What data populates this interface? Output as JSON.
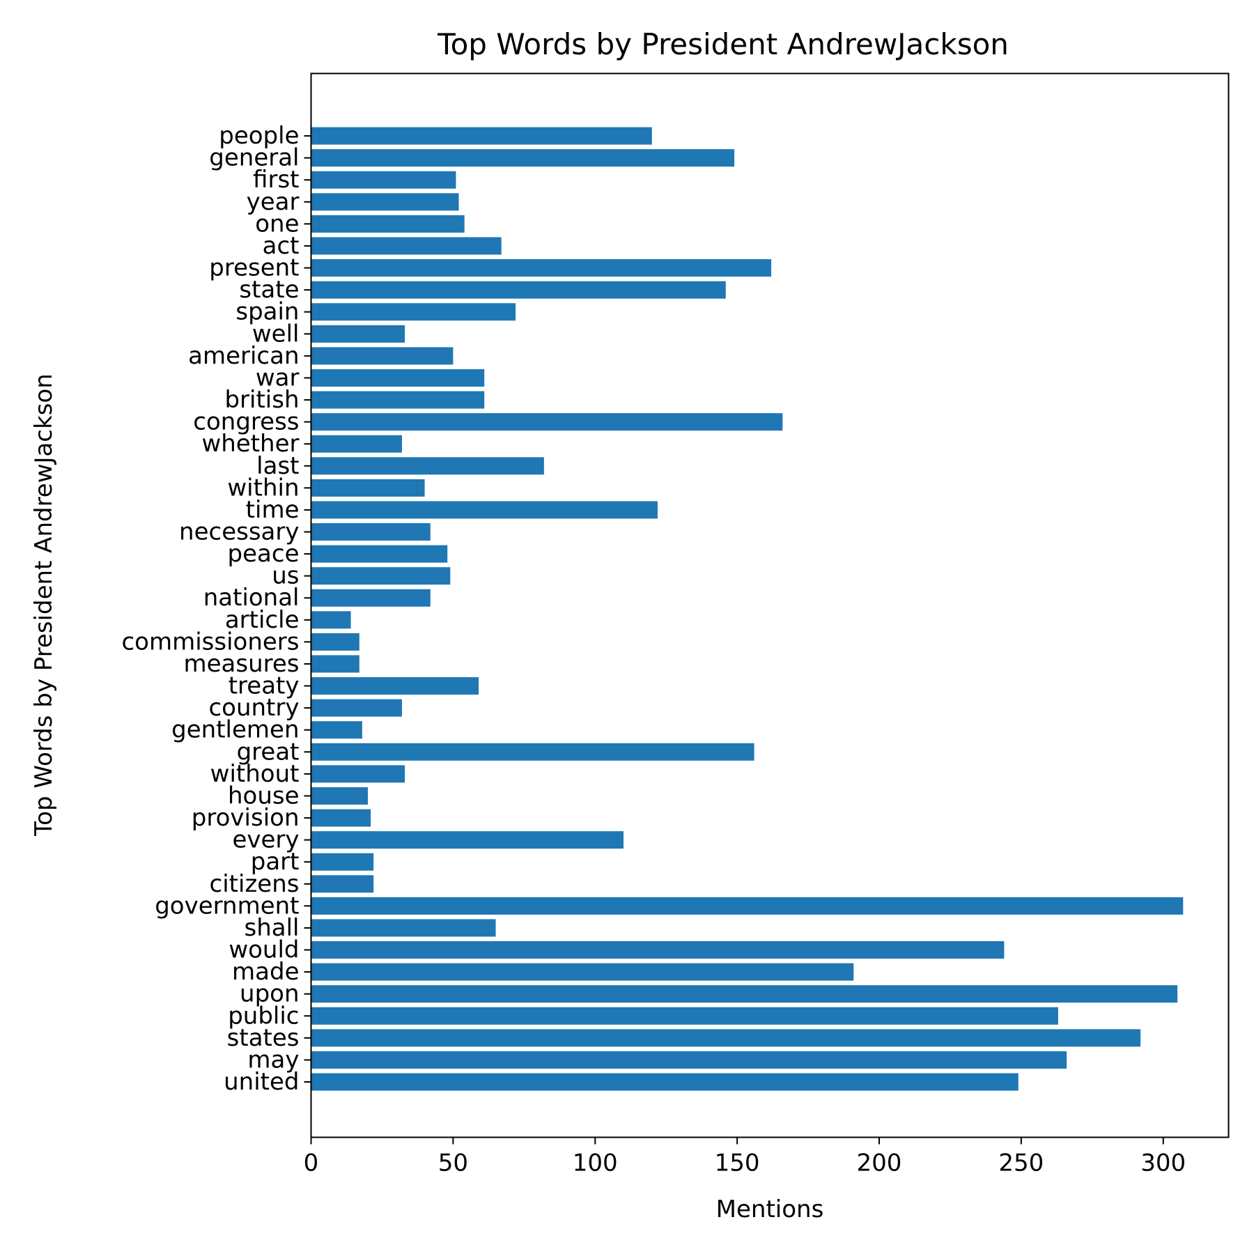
{
  "chart_data": {
    "type": "bar",
    "orientation": "horizontal",
    "title": "Top Words by President AndrewJackson",
    "xlabel": "Mentions",
    "ylabel": "Top Words by President AndrewJackson",
    "xlim": [
      0,
      323
    ],
    "xticks": [
      0,
      50,
      100,
      150,
      200,
      250,
      300
    ],
    "grid": false,
    "bar_color": "#1f77b4",
    "categories": [
      "united",
      "may",
      "states",
      "public",
      "upon",
      "made",
      "would",
      "shall",
      "government",
      "citizens",
      "part",
      "every",
      "provision",
      "house",
      "without",
      "great",
      "gentlemen",
      "country",
      "treaty",
      "measures",
      "commissioners",
      "article",
      "national",
      "us",
      "peace",
      "necessary",
      "time",
      "within",
      "last",
      "whether",
      "congress",
      "british",
      "war",
      "american",
      "well",
      "spain",
      "state",
      "present",
      "act",
      "one",
      "year",
      "first",
      "general",
      "people"
    ],
    "values": [
      249,
      266,
      292,
      263,
      305,
      191,
      244,
      65,
      307,
      22,
      22,
      110,
      21,
      20,
      33,
      156,
      18,
      32,
      59,
      17,
      17,
      14,
      42,
      49,
      48,
      42,
      122,
      40,
      82,
      32,
      166,
      61,
      61,
      50,
      33,
      72,
      146,
      162,
      67,
      54,
      52,
      51,
      149,
      120
    ]
  }
}
